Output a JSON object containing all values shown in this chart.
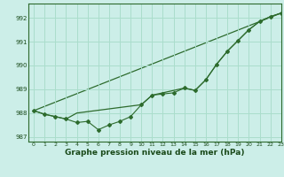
{
  "title": "Graphe pression niveau de la mer (hPa)",
  "background_color": "#cceee8",
  "grid_color": "#aaddcc",
  "line_color": "#2d6b2d",
  "xlim": [
    -0.5,
    23
  ],
  "ylim": [
    986.8,
    992.6
  ],
  "yticks": [
    987,
    988,
    989,
    990,
    991,
    992
  ],
  "xticks": [
    0,
    1,
    2,
    3,
    4,
    5,
    6,
    7,
    8,
    9,
    10,
    11,
    12,
    13,
    14,
    15,
    16,
    17,
    18,
    19,
    20,
    21,
    22,
    23
  ],
  "series1_x": [
    0,
    1,
    2,
    3,
    4,
    5,
    6,
    7,
    8,
    9,
    10,
    11,
    12,
    13,
    14,
    15,
    16,
    17,
    18,
    19,
    20,
    21,
    22,
    23
  ],
  "series1_y": [
    988.1,
    987.95,
    987.85,
    987.75,
    987.6,
    987.65,
    987.3,
    987.5,
    987.65,
    987.85,
    988.35,
    988.75,
    988.8,
    988.85,
    989.05,
    988.95,
    989.4,
    990.05,
    990.6,
    991.05,
    991.5,
    991.85,
    992.05,
    992.2
  ],
  "series2_x": [
    0,
    1,
    2,
    3,
    4,
    10,
    11,
    14,
    15,
    16,
    17,
    18,
    19,
    20,
    21,
    22,
    23
  ],
  "series2_y": [
    988.1,
    987.95,
    987.85,
    987.75,
    988.0,
    988.35,
    988.75,
    989.05,
    988.95,
    989.4,
    990.05,
    990.6,
    991.05,
    991.5,
    991.85,
    992.05,
    992.2
  ],
  "series3_x": [
    0,
    23
  ],
  "series3_y": [
    988.1,
    992.2
  ],
  "ylabel_fontsize": 5.5,
  "xlabel_fontsize": 6.5
}
